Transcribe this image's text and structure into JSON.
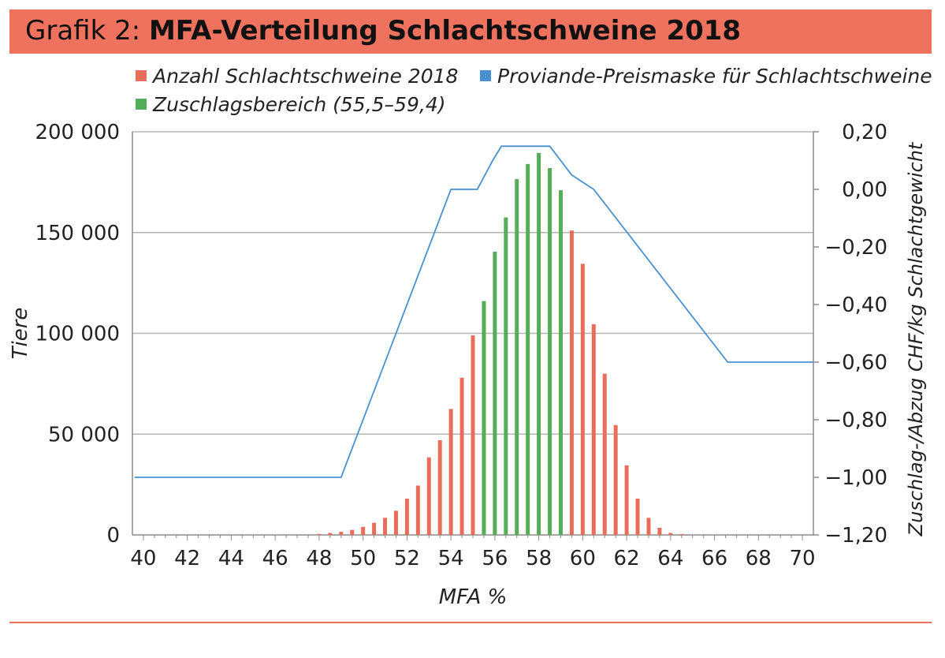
{
  "header": {
    "prefix": "Grafik 2: ",
    "title": "MFA-Verteilung Schlachtschweine 2018"
  },
  "colors": {
    "header_band": "#ef725f",
    "count_series": "#ea6d5c",
    "zuschlag_series": "#55ad5a",
    "price_line": "#4a90d0",
    "gridline": "#b5b5b5",
    "axis": "#8c8c8c"
  },
  "legend": [
    {
      "label": "Anzahl Schlachtschweine 2018",
      "color": "#ea6d5c"
    },
    {
      "label": "Proviande-Preismaske für Schlachtschweine",
      "color": "#4a90d0"
    },
    {
      "label": "Zuschlagsbereich (55,5–59,4)",
      "color": "#55ad5a"
    }
  ],
  "chart_data": {
    "type": "bar",
    "title": "MFA-Verteilung Schlachtschweine 2018",
    "xlabel": "MFA %",
    "ylabel": "Tiere",
    "y2label": "Zuschlag-/Abzug CHF/kg Schlachtgewicht",
    "xlim": [
      39.5,
      70.5
    ],
    "ylim": [
      0,
      200000
    ],
    "y2lim": [
      -1.2,
      0.2
    ],
    "grid": true,
    "x_ticks": [
      "40",
      "42",
      "44",
      "46",
      "48",
      "50",
      "52",
      "54",
      "56",
      "58",
      "60",
      "62",
      "64",
      "66",
      "68",
      "70"
    ],
    "y_ticks": [
      "0",
      "50 000",
      "100 000",
      "150 000",
      "200 000"
    ],
    "y2_ticks": [
      "−1,20",
      "−1,00",
      "−0,80",
      "−0,60",
      "−0,40",
      "−0,20",
      "0,00",
      "0,20"
    ],
    "series": [
      {
        "name": "Anzahl Schlachtschweine 2018",
        "type": "bar",
        "x": [
          48,
          48.5,
          49,
          49.5,
          50,
          50.5,
          51,
          51.5,
          52,
          52.5,
          53,
          53.5,
          54,
          54.5,
          55,
          55.5,
          56,
          56.5,
          57,
          57.5,
          58,
          58.5,
          59,
          59.5,
          60,
          60.5,
          61,
          61.5,
          62,
          62.5,
          63,
          63.5,
          64,
          64.5
        ],
        "values": [
          500,
          1000,
          1500,
          2500,
          4000,
          6000,
          8500,
          12000,
          18000,
          24500,
          38500,
          47000,
          62500,
          78000,
          99000,
          116000,
          140500,
          157500,
          176500,
          184000,
          189500,
          182000,
          171000,
          151000,
          134500,
          104500,
          80000,
          54500,
          34500,
          18000,
          8500,
          3500,
          1000,
          400
        ],
        "highlight_range": [
          55.5,
          59.4
        ]
      },
      {
        "name": "Proviande-Preismaske für Schlachtschweine",
        "type": "line",
        "axis": "right",
        "x": [
          39.6,
          49,
          54,
          55.2,
          55.9,
          56.3,
          58.5,
          59.5,
          60.5,
          66.6,
          70.5
        ],
        "values": [
          -1.0,
          -1.0,
          0.0,
          0.0,
          0.1,
          0.15,
          0.15,
          0.05,
          0.0,
          -0.6,
          -0.6
        ]
      }
    ]
  }
}
